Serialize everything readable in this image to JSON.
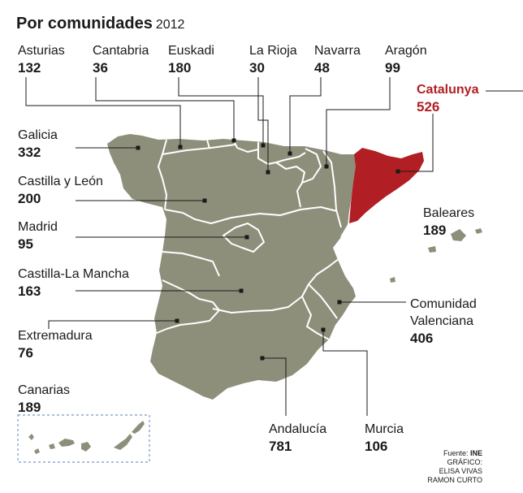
{
  "title": {
    "main": "Por comunidades",
    "year": "2012"
  },
  "regions": [
    {
      "id": "asturias",
      "name": "Asturias",
      "value": "132"
    },
    {
      "id": "cantabria",
      "name": "Cantabria",
      "value": "36"
    },
    {
      "id": "euskadi",
      "name": "Euskadi",
      "value": "180"
    },
    {
      "id": "la-rioja",
      "name": "La Rioja",
      "value": "30"
    },
    {
      "id": "navarra",
      "name": "Navarra",
      "value": "48"
    },
    {
      "id": "aragon",
      "name": "Aragón",
      "value": "99"
    },
    {
      "id": "catalunya",
      "name": "Catalunya",
      "value": "526"
    },
    {
      "id": "galicia",
      "name": "Galicia",
      "value": "332"
    },
    {
      "id": "castilla-leon",
      "name": "Castilla y León",
      "value": "200"
    },
    {
      "id": "madrid",
      "name": "Madrid",
      "value": "95"
    },
    {
      "id": "baleares",
      "name": "Baleares",
      "value": "189"
    },
    {
      "id": "castilla-la-mancha",
      "name": "Castilla-La Mancha",
      "value": "163"
    },
    {
      "id": "comunidad-valenciana",
      "name": "Comunidad Valenciana",
      "name_line1": "Comunidad",
      "name_line2": "Valenciana",
      "value": "406"
    },
    {
      "id": "extremadura",
      "name": "Extremadura",
      "value": "76"
    },
    {
      "id": "canarias",
      "name": "Canarias",
      "value": "189"
    },
    {
      "id": "andalucia",
      "name": "Andalucía",
      "value": "781"
    },
    {
      "id": "murcia",
      "name": "Murcia",
      "value": "106"
    }
  ],
  "highlight_region": "Catalunya",
  "colors": {
    "land": "#8e8f7b",
    "highlight": "#b11f24",
    "borders": "#ffffff",
    "leader": "#1a1a1a",
    "canarias_box": "#7a98c8"
  },
  "credits": {
    "source_label": "Fuente:",
    "source": "INE",
    "graphic_label": "GRÁFICO:",
    "author1": "ELISA VIVAS",
    "author2": "RAMON CURTO"
  }
}
